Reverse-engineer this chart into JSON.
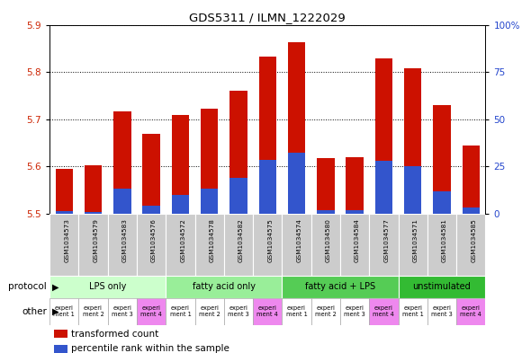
{
  "title": "GDS5311 / ILMN_1222029",
  "samples": [
    "GSM1034573",
    "GSM1034579",
    "GSM1034583",
    "GSM1034576",
    "GSM1034572",
    "GSM1034578",
    "GSM1034582",
    "GSM1034575",
    "GSM1034574",
    "GSM1034580",
    "GSM1034584",
    "GSM1034577",
    "GSM1034571",
    "GSM1034581",
    "GSM1034585"
  ],
  "red_values": [
    5.595,
    5.603,
    5.717,
    5.668,
    5.708,
    5.723,
    5.76,
    5.832,
    5.862,
    5.617,
    5.62,
    5.828,
    5.807,
    5.73,
    5.645
  ],
  "blue_values": [
    5.506,
    5.503,
    5.553,
    5.517,
    5.54,
    5.553,
    5.576,
    5.614,
    5.628,
    5.507,
    5.507,
    5.611,
    5.6,
    5.548,
    5.513
  ],
  "y_min": 5.5,
  "y_max": 5.9,
  "y_ticks": [
    5.5,
    5.6,
    5.7,
    5.8,
    5.9
  ],
  "y2_ticks": [
    0,
    25,
    50,
    75,
    100
  ],
  "y2_tick_labels": [
    "0",
    "25",
    "50",
    "75",
    "100%"
  ],
  "protocol_groups": [
    {
      "label": "LPS only",
      "start": 0,
      "end": 4,
      "color": "#ccffcc"
    },
    {
      "label": "fatty acid only",
      "start": 4,
      "end": 8,
      "color": "#99ee99"
    },
    {
      "label": "fatty acid + LPS",
      "start": 8,
      "end": 12,
      "color": "#55cc55"
    },
    {
      "label": "unstimulated",
      "start": 12,
      "end": 15,
      "color": "#33bb33"
    }
  ],
  "other_cells": [
    {
      "text": "experi\nment 1",
      "col": 0,
      "color": "#ffffff"
    },
    {
      "text": "experi\nment 2",
      "col": 1,
      "color": "#ffffff"
    },
    {
      "text": "experi\nment 3",
      "col": 2,
      "color": "#ffffff"
    },
    {
      "text": "experi\nment 4",
      "col": 3,
      "color": "#ee88ee"
    },
    {
      "text": "experi\nment 1",
      "col": 4,
      "color": "#ffffff"
    },
    {
      "text": "experi\nment 2",
      "col": 5,
      "color": "#ffffff"
    },
    {
      "text": "experi\nment 3",
      "col": 6,
      "color": "#ffffff"
    },
    {
      "text": "experi\nment 4",
      "col": 7,
      "color": "#ee88ee"
    },
    {
      "text": "experi\nment 1",
      "col": 8,
      "color": "#ffffff"
    },
    {
      "text": "experi\nment 2",
      "col": 9,
      "color": "#ffffff"
    },
    {
      "text": "experi\nment 3",
      "col": 10,
      "color": "#ffffff"
    },
    {
      "text": "experi\nment 4",
      "col": 11,
      "color": "#ee88ee"
    },
    {
      "text": "experi\nment 1",
      "col": 12,
      "color": "#ffffff"
    },
    {
      "text": "experi\nment 3",
      "col": 13,
      "color": "#ffffff"
    },
    {
      "text": "experi\nment 4",
      "col": 14,
      "color": "#ee88ee"
    }
  ],
  "bar_color_red": "#cc1100",
  "bar_color_blue": "#3355cc",
  "bar_width": 0.6,
  "left_axis_color": "#cc2200",
  "right_axis_color": "#2244cc",
  "sample_bg_color": "#cccccc",
  "sample_border_color": "#ffffff"
}
